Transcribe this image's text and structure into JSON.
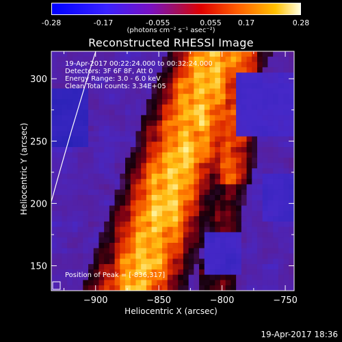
{
  "colorbar": {
    "ticks": [
      "-0.28",
      "-0.17",
      "-0.055",
      "0.055",
      "0.17",
      "0.28"
    ],
    "unit_label": "(photons cm⁻² s⁻¹ asec⁻²)",
    "range": [
      -0.28,
      0.28
    ]
  },
  "title": "Reconstructed RHESSI Image",
  "info": {
    "time_range": "19-Apr-2017 00:22:24.000 to 00:32:24.000",
    "detectors": "Detectors: 3F 6F 8F, Att 0",
    "energy": "Energy Range: 3.0 - 6.0 keV",
    "clean": "Clean     Total counts: 3.34E+05",
    "peak": "Position of Peak = [-836,317]"
  },
  "chart_data": {
    "type": "heatmap",
    "title": "Reconstructed RHESSI Image",
    "xlabel": "Heliocentric X (arcsec)",
    "ylabel": "Heliocentric Y (arcsec)",
    "xlim": [
      -935,
      -743
    ],
    "ylim": [
      130,
      322
    ],
    "xticks": [
      -900,
      -850,
      -800,
      -750
    ],
    "xtick_labels": [
      "−900",
      "−850",
      "−800",
      "−750"
    ],
    "yticks": [
      150,
      200,
      250,
      300
    ],
    "ytick_labels": [
      "150",
      "200",
      "250",
      "300"
    ],
    "peak": [
      -836,
      317
    ],
    "grid": false
  },
  "footer": "19-Apr-2017 18:36"
}
